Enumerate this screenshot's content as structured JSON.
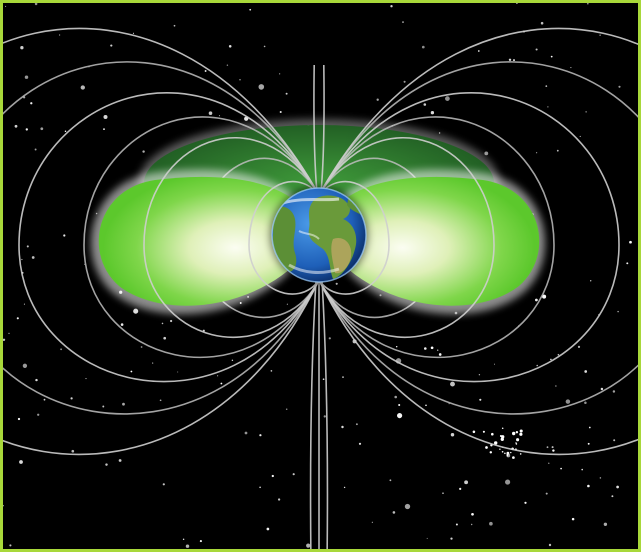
{
  "scene": {
    "subject": "earth-magnetosphere-illustration",
    "colors": {
      "frame_border": "#a8d83a",
      "space_background": "#000000",
      "belt_green": "#5fcf2a",
      "belt_dark_green": "#2f7a2a",
      "belt_core": "#f4f8e6",
      "field_lines": "#c8c8c8",
      "stars": "#ffffff",
      "ocean": "#2a6fc9",
      "land": "#5c9a3a"
    },
    "icons": [
      "earth-globe",
      "magnetic-field-lines",
      "radiation-belt",
      "star-field"
    ]
  }
}
